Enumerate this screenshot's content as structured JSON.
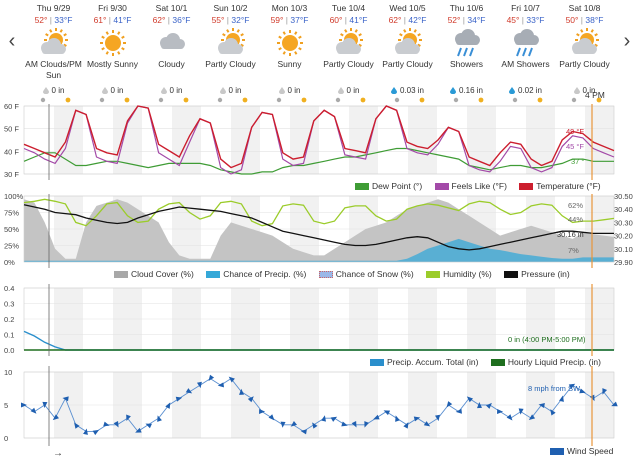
{
  "days": [
    {
      "date": "Thu 9/29",
      "hi": "52°",
      "lo": "33°F",
      "cond": "AM Clouds/PM",
      "cond2": "Sun",
      "precip": "0 in",
      "icon": "partly-sunny-icon"
    },
    {
      "date": "Fri 9/30",
      "hi": "61°",
      "lo": "41°F",
      "cond": "Mostly Sunny",
      "cond2": "",
      "precip": "0 in",
      "icon": "sunny-icon"
    },
    {
      "date": "Sat 10/1",
      "hi": "62°",
      "lo": "36°F",
      "cond": "Cloudy",
      "cond2": "",
      "precip": "0 in",
      "icon": "cloud-icon"
    },
    {
      "date": "Sun 10/2",
      "hi": "55°",
      "lo": "32°F",
      "cond": "Partly Cloudy",
      "cond2": "",
      "precip": "0 in",
      "icon": "partly-sunny-icon"
    },
    {
      "date": "Mon 10/3",
      "hi": "59°",
      "lo": "37°F",
      "cond": "Sunny",
      "cond2": "",
      "precip": "0 in",
      "icon": "sunny-icon"
    },
    {
      "date": "Tue 10/4",
      "hi": "60°",
      "lo": "41°F",
      "cond": "Partly Cloudy",
      "cond2": "",
      "precip": "0 in",
      "icon": "partly-sunny-icon"
    },
    {
      "date": "Wed 10/5",
      "hi": "62°",
      "lo": "42°F",
      "cond": "Partly Cloudy",
      "cond2": "",
      "precip": "0.03 in",
      "icon": "partly-sunny-icon"
    },
    {
      "date": "Thu 10/6",
      "hi": "52°",
      "lo": "34°F",
      "cond": "Showers",
      "cond2": "",
      "precip": "0.16 in",
      "icon": "showers-icon"
    },
    {
      "date": "Fri 10/7",
      "hi": "45°",
      "lo": "33°F",
      "cond": "AM Showers",
      "cond2": "",
      "precip": "0.02 in",
      "icon": "showers-icon"
    },
    {
      "date": "Sat 10/8",
      "hi": "50°",
      "lo": "38°F",
      "cond": "Partly Cloudy",
      "cond2": "",
      "precip": "0 in",
      "icon": "partly-sunny-icon"
    }
  ],
  "now_label": "4 PM",
  "nav": {
    "prev": "‹",
    "next": "›"
  },
  "colors": {
    "temperature": "#cc1e2e",
    "feels_like": "#a34aa8",
    "dew_point": "#3f9c35",
    "cloud_cover": "#a8a8a8",
    "precip_chance": "#35a8d8",
    "snow_chance": "#9ab8e8",
    "humidity": "#9bcc2a",
    "pressure": "#111111",
    "accum": "#2a8fcc",
    "liquid": "#1e6e1e",
    "wind": "#1f5fb0",
    "now_line": "#e8953a"
  },
  "temp_panel": {
    "y_ticks": [
      "60 F",
      "50 F",
      "40 F",
      "30 F"
    ],
    "readouts": {
      "temperature": "49 °F",
      "feels_like": "45 °F",
      "dew_point": "37 °"
    },
    "legend": [
      "Dew Point (°)",
      "Feels Like (°F)",
      "Temperature (°F)"
    ]
  },
  "cloud_panel": {
    "y_ticks_left": [
      "100%",
      "75%",
      "50%",
      "25%",
      "0%"
    ],
    "y_ticks_right": [
      "30.50",
      "30.40",
      "30.30",
      "30.20",
      "30.10",
      "29.90"
    ],
    "readouts": {
      "humidity": "62%",
      "cloud": "44%",
      "pressure": "30.16 in",
      "precip_chance": "7%"
    },
    "legend": [
      "Cloud Cover (%)",
      "Chance of Precip. (%)",
      "Chance of Snow (%)",
      "Humidity (%)",
      "Pressure (in)"
    ]
  },
  "precip_panel": {
    "y_ticks": [
      "0.4",
      "0.3",
      "0.2",
      "0.1",
      "0.0"
    ],
    "readout": "0 in (4:00 PM-5:00 PM)",
    "legend": [
      "Precip. Accum. Total (in)",
      "Hourly Liquid Precip. (in)"
    ]
  },
  "wind_panel": {
    "y_ticks": [
      "10",
      "5",
      "0"
    ],
    "readout": "8 mph from SW",
    "legend": [
      "Wind Speed"
    ],
    "arrow": "→"
  },
  "chart_data": [
    {
      "type": "line",
      "series": [
        {
          "name": "Temperature (°F)",
          "values": [
            44,
            42,
            40,
            38,
            45,
            60,
            58,
            42,
            40,
            39,
            55,
            62,
            61,
            44,
            41,
            38,
            48,
            56,
            54,
            37,
            33,
            35,
            52,
            59,
            58,
            40,
            37,
            38,
            55,
            60,
            57,
            42,
            41,
            40,
            56,
            62,
            60,
            45,
            43,
            42,
            46,
            52,
            50,
            38,
            36,
            34,
            40,
            45,
            44,
            37,
            34,
            36,
            46,
            50,
            49,
            45,
            43,
            41
          ]
        },
        {
          "name": "Feels Like (°F)",
          "values": [
            42,
            40,
            37,
            35,
            42,
            60,
            58,
            38,
            36,
            35,
            54,
            62,
            61,
            40,
            37,
            34,
            45,
            56,
            54,
            33,
            30,
            32,
            52,
            59,
            58,
            37,
            34,
            35,
            55,
            60,
            57,
            39,
            38,
            37,
            56,
            62,
            60,
            42,
            40,
            39,
            44,
            52,
            50,
            34,
            32,
            31,
            36,
            43,
            42,
            33,
            31,
            33,
            43,
            48,
            47,
            42,
            40,
            38
          ]
        },
        {
          "name": "Dew Point (°)",
          "values": [
            36,
            38,
            40,
            40,
            37,
            34,
            34,
            35,
            36,
            36,
            35,
            34,
            33,
            34,
            35,
            35,
            35,
            35,
            34,
            32,
            31,
            30,
            30,
            31,
            31,
            33,
            34,
            34,
            35,
            36,
            37,
            38,
            38,
            39,
            40,
            41,
            42,
            42,
            41,
            40,
            39,
            38,
            37,
            34,
            33,
            32,
            33,
            34,
            34,
            33,
            33,
            34,
            35,
            37,
            37,
            36,
            36,
            36
          ]
        }
      ],
      "y_ticks": [
        "60 F",
        "50 F",
        "40 F",
        "30 F"
      ],
      "ylim": [
        30,
        62
      ]
    },
    {
      "type": "area",
      "series": [
        {
          "name": "Cloud Cover (%)",
          "values": [
            95,
            90,
            60,
            20,
            5,
            5,
            60,
            85,
            90,
            95,
            90,
            80,
            70,
            60,
            30,
            10,
            5,
            5,
            5,
            40,
            60,
            55,
            50,
            45,
            40,
            30,
            20,
            15,
            10,
            10,
            20,
            30,
            40,
            50,
            55,
            60,
            70,
            80,
            85,
            90,
            95,
            90,
            80,
            70,
            60,
            50,
            40,
            45,
            50,
            55,
            50,
            45,
            40,
            35,
            44,
            42,
            40,
            38
          ]
        },
        {
          "name": "Humidity (%)",
          "values": [
            90,
            92,
            95,
            92,
            88,
            60,
            55,
            70,
            88,
            90,
            70,
            60,
            62,
            80,
            88,
            90,
            75,
            65,
            70,
            90,
            92,
            88,
            62,
            55,
            58,
            85,
            88,
            86,
            62,
            58,
            62,
            82,
            85,
            85,
            70,
            62,
            65,
            80,
            85,
            88,
            86,
            82,
            78,
            88,
            92,
            90,
            80,
            72,
            75,
            85,
            88,
            86,
            70,
            60,
            62,
            62,
            64,
            66
          ]
        },
        {
          "name": "Chance of Precip. (%)",
          "values": [
            2,
            2,
            2,
            2,
            2,
            2,
            2,
            2,
            2,
            2,
            2,
            2,
            2,
            2,
            2,
            2,
            2,
            2,
            2,
            2,
            2,
            2,
            2,
            2,
            2,
            2,
            2,
            2,
            2,
            2,
            2,
            2,
            2,
            2,
            2,
            2,
            2,
            5,
            12,
            20,
            25,
            30,
            35,
            30,
            25,
            20,
            18,
            15,
            12,
            10,
            8,
            6,
            5,
            5,
            7,
            7,
            7,
            7
          ]
        },
        {
          "name": "Pressure (in)",
          "values": [
            30.42,
            30.4,
            30.38,
            30.35,
            30.34,
            30.33,
            30.3,
            30.28,
            30.26,
            30.25,
            30.26,
            30.3,
            30.33,
            30.36,
            30.38,
            30.4,
            30.39,
            30.38,
            30.37,
            30.36,
            30.34,
            30.32,
            30.3,
            30.26,
            30.22,
            30.18,
            30.16,
            30.14,
            30.12,
            30.1,
            30.08,
            30.06,
            30.05,
            30.05,
            30.06,
            30.08,
            30.1,
            30.12,
            30.13,
            30.12,
            30.08,
            30.04,
            30.02,
            30.01,
            30.02,
            30.04,
            30.06,
            30.08,
            30.1,
            30.12,
            30.14,
            30.16,
            30.18,
            30.18,
            30.17,
            30.16,
            30.16,
            30.16
          ]
        }
      ],
      "ylim": [
        0,
        100
      ],
      "ylim_right": [
        29.9,
        30.5
      ]
    },
    {
      "type": "line",
      "series": [
        {
          "name": "Precip. Accum. Total (in)",
          "values": [
            0.12,
            0.09,
            0.05,
            0.02,
            0,
            0,
            0,
            0,
            0,
            0,
            0,
            0,
            0,
            0,
            0,
            0,
            0,
            0,
            0,
            0,
            0,
            0,
            0,
            0,
            0,
            0,
            0,
            0,
            0,
            0,
            0,
            0,
            0,
            0,
            0,
            0,
            0,
            0,
            0,
            0,
            0,
            0,
            0,
            0,
            0,
            0,
            0,
            0,
            0,
            0,
            0,
            0,
            0,
            0,
            0,
            0,
            0,
            0
          ]
        },
        {
          "name": "Hourly Liquid Precip. (in)",
          "values": [
            0,
            0,
            0,
            0,
            0,
            0,
            0,
            0,
            0,
            0,
            0,
            0,
            0,
            0,
            0,
            0,
            0,
            0,
            0,
            0,
            0,
            0,
            0,
            0,
            0,
            0,
            0,
            0,
            0,
            0,
            0,
            0,
            0,
            0,
            0,
            0,
            0,
            0,
            0,
            0,
            0,
            0,
            0,
            0,
            0,
            0,
            0,
            0,
            0,
            0,
            0,
            0,
            0,
            0,
            0,
            0,
            0,
            0
          ]
        }
      ],
      "ylim": [
        0,
        0.4
      ]
    },
    {
      "type": "line",
      "series": [
        {
          "name": "Wind Speed",
          "values": [
            5,
            4,
            5,
            3,
            6,
            2,
            1,
            1,
            2,
            2,
            3,
            1,
            2,
            3,
            5,
            6,
            7,
            8,
            9,
            8,
            9,
            7,
            6,
            4,
            3,
            2,
            2,
            1,
            2,
            3,
            3,
            2,
            2,
            2,
            3,
            4,
            3,
            2,
            3,
            2,
            3,
            5,
            4,
            6,
            5,
            5,
            4,
            3,
            4,
            3,
            5,
            4,
            6,
            8,
            7,
            6,
            7,
            5
          ]
        }
      ],
      "ylim": [
        0,
        10
      ]
    }
  ]
}
